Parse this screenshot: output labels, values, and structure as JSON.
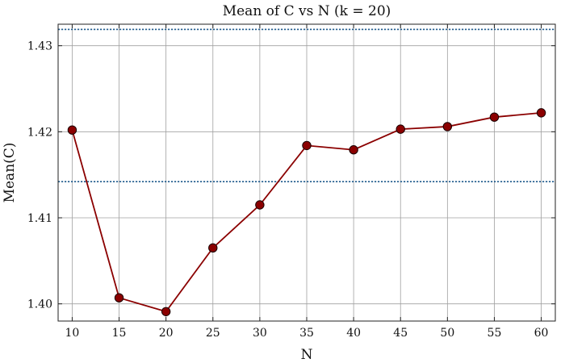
{
  "chart_data": {
    "type": "line",
    "title": "Mean of C vs N (k = 20)",
    "xlabel": "N",
    "ylabel": "Mean(C)",
    "x": [
      10,
      15,
      20,
      25,
      30,
      35,
      40,
      45,
      50,
      55,
      60
    ],
    "series": [
      {
        "values": [
          1.4202,
          1.4007,
          1.3991,
          1.4065,
          1.4115,
          1.4184,
          1.4179,
          1.4203,
          1.4206,
          1.4217,
          1.4222
        ],
        "color": "#8b0000",
        "marker": "circle"
      }
    ],
    "reference_lines": [
      {
        "y": 1.4319,
        "color": "#1f5a8c",
        "style": "dotted"
      },
      {
        "y": 1.4142,
        "color": "#1f5a8c",
        "style": "dotted"
      }
    ],
    "xlim": [
      8.5,
      61.5
    ],
    "ylim": [
      1.398,
      1.4325
    ],
    "xticks": [
      10,
      15,
      20,
      25,
      30,
      35,
      40,
      45,
      50,
      55,
      60
    ],
    "yticks": [
      1.4,
      1.41,
      1.42,
      1.43
    ],
    "ytick_labels": [
      "1.40",
      "1.41",
      "1.42",
      "1.43"
    ],
    "grid": true
  }
}
